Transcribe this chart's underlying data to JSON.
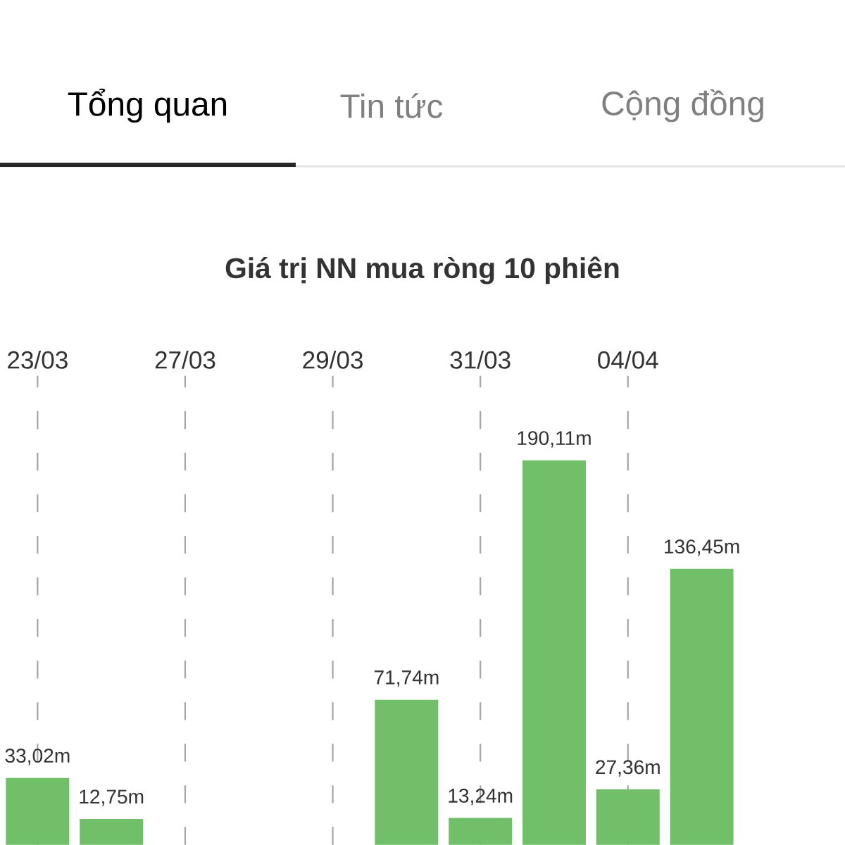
{
  "chart_data": {
    "type": "bar",
    "title": "Giá trị NN mua ròng 10 phiên",
    "annotations": [
      "Tổng quan",
      "Tin tức",
      "Cộng đồng"
    ],
    "categories": [
      "23/03",
      null,
      "27/03",
      null,
      "29/03",
      null,
      "31/03",
      null,
      "04/04",
      null
    ],
    "values": [
      33.02,
      12.75,
      null,
      null,
      null,
      71.74,
      13.24,
      190.11,
      27.36,
      136.45
    ],
    "value_labels": [
      "33,02m",
      "12,75m",
      null,
      null,
      null,
      "71,74m",
      "13,24m",
      "190,11m",
      "27,36m",
      "136,45m"
    ],
    "color": "#72bf6a",
    "grid": "x"
  }
}
